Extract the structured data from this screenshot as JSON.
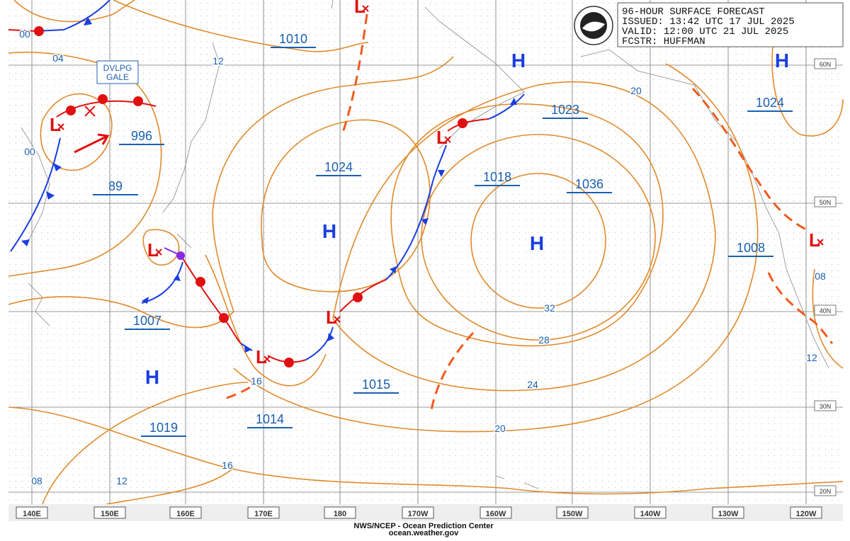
{
  "header": {
    "lines": [
      "96-HOUR SURFACE FORECAST",
      "ISSUED: 13:42 UTC 17 JUL 2025",
      "VALID:  12:00 UTC 21 JUL 2025",
      "FCSTR: HUFFMAN"
    ]
  },
  "footer": {
    "lines": [
      "NWS/NCEP - Ocean Prediction Center",
      "ocean.weather.gov"
    ]
  },
  "longitude_labels": [
    "140E",
    "150E",
    "160E",
    "170E",
    "180",
    "170W",
    "160W",
    "150W",
    "140W",
    "130W",
    "120W"
  ],
  "latitude_labels": [
    "60N",
    "50N",
    "40N",
    "30N",
    "20N"
  ],
  "pressure_labels": [
    "1010",
    "996",
    "89",
    "1024",
    "1023",
    "1018",
    "1036",
    "1024",
    "1008",
    "1007",
    "1015",
    "1014",
    "1019"
  ],
  "isobar_labels": [
    "00",
    "04",
    "12",
    "00",
    "20",
    "32",
    "28",
    "24",
    "20",
    "16",
    "16",
    "12",
    "08",
    "08",
    "12"
  ],
  "high_symbols": [
    "H",
    "H",
    "H",
    "H",
    "H"
  ],
  "low_symbols": [
    "L",
    "L",
    "L",
    "L",
    "L",
    "L",
    "L"
  ],
  "warning_lines": [
    "DVLPG",
    "GALE"
  ]
}
